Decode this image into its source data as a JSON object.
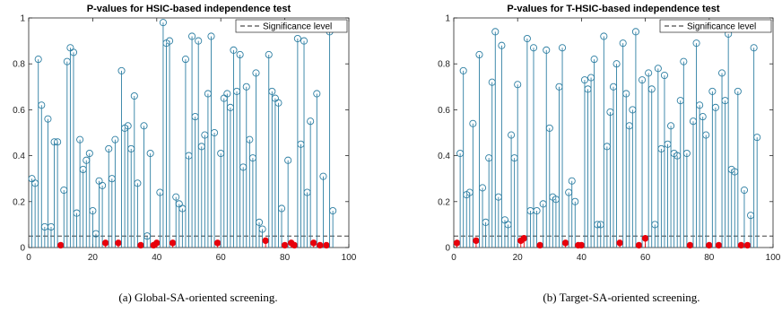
{
  "colors": {
    "stem": "#2e7fa3",
    "significant": "#e8000b",
    "threshold": "#222222",
    "axis": "#262626"
  },
  "chart_data": [
    {
      "type": "stem",
      "title": "P-values for HSIC-based independence test",
      "caption": "(a) Global-SA-oriented screening.",
      "legend": {
        "label": "Significance level",
        "position": "top-right"
      },
      "threshold": 0.05,
      "xlim": [
        0,
        100
      ],
      "ylim": [
        0,
        1
      ],
      "xticks": [
        0,
        20,
        40,
        60,
        80,
        100
      ],
      "yticks": [
        0,
        0.2,
        0.4,
        0.6,
        0.8,
        1
      ],
      "xtick_labels": [
        "0",
        "20",
        "40",
        "60",
        "80",
        "100"
      ],
      "ytick_labels": [
        "0",
        "0.2",
        "0.4",
        "0.6",
        "0.8",
        "1"
      ],
      "x": [
        1,
        2,
        3,
        4,
        5,
        6,
        7,
        8,
        9,
        10,
        11,
        12,
        13,
        14,
        15,
        16,
        17,
        18,
        19,
        20,
        21,
        22,
        23,
        24,
        25,
        26,
        27,
        28,
        29,
        30,
        31,
        32,
        33,
        34,
        35,
        36,
        37,
        38,
        39,
        40,
        41,
        42,
        43,
        44,
        45,
        46,
        47,
        48,
        49,
        50,
        51,
        52,
        53,
        54,
        55,
        56,
        57,
        58,
        59,
        60,
        61,
        62,
        63,
        64,
        65,
        66,
        67,
        68,
        69,
        70,
        71,
        72,
        73,
        74,
        75,
        76,
        77,
        78,
        79,
        80,
        81,
        82,
        83,
        84,
        85,
        86,
        87,
        88,
        89,
        90,
        91,
        92,
        93,
        94,
        95
      ],
      "y": [
        0.3,
        0.28,
        0.82,
        0.62,
        0.09,
        0.56,
        0.09,
        0.46,
        0.46,
        0.01,
        0.25,
        0.81,
        0.87,
        0.85,
        0.15,
        0.47,
        0.34,
        0.38,
        0.41,
        0.16,
        0.06,
        0.29,
        0.27,
        0.02,
        0.43,
        0.3,
        0.47,
        0.02,
        0.77,
        0.52,
        0.53,
        0.43,
        0.66,
        0.28,
        0.01,
        0.53,
        0.05,
        0.41,
        0.01,
        0.02,
        0.24,
        0.98,
        0.89,
        0.9,
        0.02,
        0.22,
        0.19,
        0.17,
        0.82,
        0.4,
        0.92,
        0.57,
        0.9,
        0.44,
        0.49,
        0.67,
        0.92,
        0.5,
        0.02,
        0.41,
        0.65,
        0.67,
        0.61,
        0.86,
        0.68,
        0.84,
        0.35,
        0.7,
        0.47,
        0.39,
        0.76,
        0.11,
        0.08,
        0.03,
        0.84,
        0.68,
        0.65,
        0.63,
        0.17,
        0.01,
        0.38,
        0.02,
        0.01,
        0.91,
        0.45,
        0.9,
        0.24,
        0.55,
        0.02,
        0.67,
        0.01,
        0.31,
        0.01,
        0.94,
        0.16
      ]
    },
    {
      "type": "stem",
      "title": "P-values for T-HSIC-based independence test",
      "caption": "(b) Target-SA-oriented screening.",
      "legend": {
        "label": "Significance level",
        "position": "top-right"
      },
      "threshold": 0.05,
      "xlim": [
        0,
        100
      ],
      "ylim": [
        0,
        1
      ],
      "xticks": [
        0,
        20,
        40,
        60,
        80,
        100
      ],
      "yticks": [
        0,
        0.2,
        0.4,
        0.6,
        0.8,
        1
      ],
      "xtick_labels": [
        "0",
        "20",
        "40",
        "60",
        "80",
        "100"
      ],
      "ytick_labels": [
        "0",
        "0.2",
        "0.4",
        "0.6",
        "0.8",
        "1"
      ],
      "x": [
        1,
        2,
        3,
        4,
        5,
        6,
        7,
        8,
        9,
        10,
        11,
        12,
        13,
        14,
        15,
        16,
        17,
        18,
        19,
        20,
        21,
        22,
        23,
        24,
        25,
        26,
        27,
        28,
        29,
        30,
        31,
        32,
        33,
        34,
        35,
        36,
        37,
        38,
        39,
        40,
        41,
        42,
        43,
        44,
        45,
        46,
        47,
        48,
        49,
        50,
        51,
        52,
        53,
        54,
        55,
        56,
        57,
        58,
        59,
        60,
        61,
        62,
        63,
        64,
        65,
        66,
        67,
        68,
        69,
        70,
        71,
        72,
        73,
        74,
        75,
        76,
        77,
        78,
        79,
        80,
        81,
        82,
        83,
        84,
        85,
        86,
        87,
        88,
        89,
        90,
        91,
        92,
        93,
        94,
        95
      ],
      "y": [
        0.02,
        0.41,
        0.77,
        0.23,
        0.24,
        0.54,
        0.03,
        0.84,
        0.26,
        0.11,
        0.39,
        0.72,
        0.94,
        0.22,
        0.88,
        0.12,
        0.1,
        0.49,
        0.39,
        0.71,
        0.03,
        0.04,
        0.91,
        0.16,
        0.87,
        0.16,
        0.01,
        0.19,
        0.86,
        0.52,
        0.22,
        0.21,
        0.7,
        0.87,
        0.02,
        0.24,
        0.29,
        0.2,
        0.01,
        0.01,
        0.73,
        0.69,
        0.74,
        0.82,
        0.1,
        0.1,
        0.92,
        0.44,
        0.59,
        0.7,
        0.8,
        0.02,
        0.89,
        0.67,
        0.53,
        0.6,
        0.94,
        0.01,
        0.73,
        0.04,
        0.76,
        0.69,
        0.1,
        0.78,
        0.43,
        0.75,
        0.45,
        0.53,
        0.41,
        0.4,
        0.64,
        0.81,
        0.41,
        0.01,
        0.55,
        0.89,
        0.62,
        0.57,
        0.49,
        0.01,
        0.68,
        0.61,
        0.01,
        0.76,
        0.64,
        0.93,
        0.34,
        0.33,
        0.68,
        0.01,
        0.25,
        0.01,
        0.14,
        0.87,
        0.48
      ]
    }
  ]
}
